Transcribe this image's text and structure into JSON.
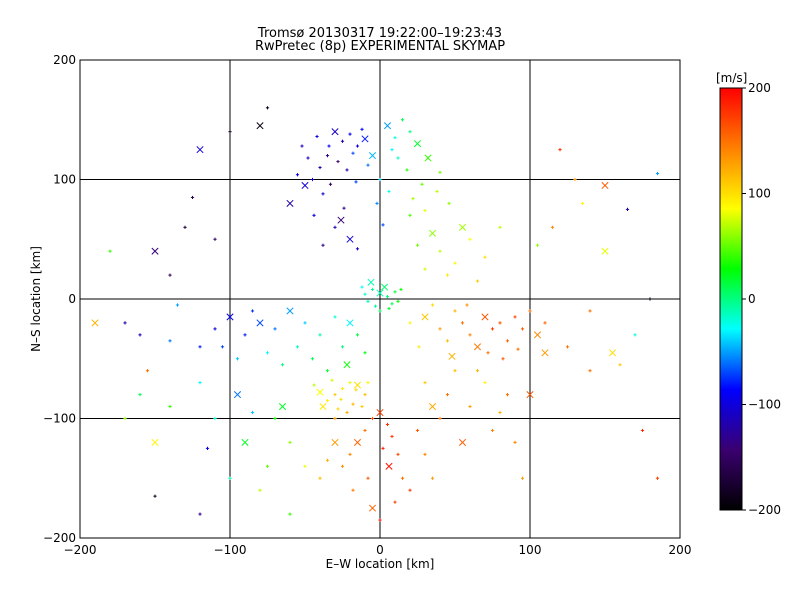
{
  "chart_data": {
    "type": "scatter",
    "title": "Tromsø 20130317 19:22:00–19:23:43",
    "subtitle": "RwPretec (8p) EXPERIMENTAL SKYMAP",
    "xlabel": "E–W location [km]",
    "ylabel": "N–S location [km]",
    "xlim": [
      -200,
      200
    ],
    "ylim": [
      -200,
      200
    ],
    "xticks": [
      -200,
      -100,
      0,
      100,
      200
    ],
    "yticks": [
      -200,
      -100,
      0,
      100,
      200
    ],
    "grid": true,
    "colorbar": {
      "label": "[m/s]",
      "range": [
        -200,
        200
      ],
      "ticks": [
        -200,
        -100,
        0,
        100,
        200
      ],
      "colors": [
        "#000000",
        "#3a0070",
        "#0000ff",
        "#00ffff",
        "#00ff00",
        "#ffff00",
        "#ff8000",
        "#ff0000"
      ]
    },
    "markers": [
      "+",
      "x"
    ],
    "series": [
      {
        "points": [
          [
            -30,
            140,
            -110
          ],
          [
            -25,
            132,
            -120
          ],
          [
            -20,
            138,
            -90
          ],
          [
            -15,
            128,
            -100
          ],
          [
            -35,
            120,
            -130
          ],
          [
            -10,
            134,
            -80
          ],
          [
            -40,
            110,
            -120
          ],
          [
            -45,
            100,
            -110
          ],
          [
            -28,
            115,
            -140
          ],
          [
            -18,
            122,
            -70
          ],
          [
            -50,
            95,
            -100
          ],
          [
            -22,
            108,
            -125
          ],
          [
            -55,
            104,
            -95
          ],
          [
            -12,
            142,
            -85
          ],
          [
            -33,
            96,
            -150
          ],
          [
            -60,
            80,
            -120
          ],
          [
            -38,
            88,
            -105
          ],
          [
            -48,
            118,
            -110
          ],
          [
            -24,
            76,
            -130
          ],
          [
            -30,
            60,
            -115
          ],
          [
            -20,
            50,
            -100
          ],
          [
            -38,
            45,
            -135
          ],
          [
            -15,
            42,
            -110
          ],
          [
            -44,
            70,
            -95
          ],
          [
            -8,
            112,
            -60
          ],
          [
            -26,
            66,
            -145
          ],
          [
            -34,
            128,
            -88
          ],
          [
            -16,
            98,
            -72
          ],
          [
            -52,
            128,
            -112
          ],
          [
            -42,
            136,
            -98
          ],
          [
            5,
            145,
            -50
          ],
          [
            10,
            135,
            -20
          ],
          [
            15,
            150,
            10
          ],
          [
            8,
            125,
            -30
          ],
          [
            20,
            140,
            0
          ],
          [
            25,
            130,
            20
          ],
          [
            12,
            118,
            -15
          ],
          [
            18,
            108,
            35
          ],
          [
            28,
            96,
            50
          ],
          [
            22,
            84,
            65
          ],
          [
            -5,
            120,
            -45
          ],
          [
            0,
            100,
            -40
          ],
          [
            6,
            90,
            -25
          ],
          [
            -2,
            80,
            -55
          ],
          [
            2,
            62,
            -70
          ],
          [
            32,
            118,
            40
          ],
          [
            40,
            106,
            55
          ],
          [
            38,
            90,
            70
          ],
          [
            30,
            74,
            80
          ],
          [
            46,
            80,
            60
          ],
          [
            0,
            5,
            -10
          ],
          [
            5,
            2,
            0
          ],
          [
            -5,
            8,
            -5
          ],
          [
            8,
            -4,
            10
          ],
          [
            -8,
            -2,
            -15
          ],
          [
            3,
            10,
            5
          ],
          [
            -3,
            -6,
            -8
          ],
          [
            10,
            6,
            15
          ],
          [
            -10,
            4,
            -20
          ],
          [
            6,
            -8,
            20
          ],
          [
            -6,
            14,
            -12
          ],
          [
            12,
            -2,
            25
          ],
          [
            0,
            -10,
            8
          ],
          [
            -12,
            10,
            -25
          ],
          [
            14,
            8,
            30
          ],
          [
            -20,
            -20,
            -30
          ],
          [
            -30,
            -15,
            -20
          ],
          [
            -40,
            -30,
            -10
          ],
          [
            -25,
            -40,
            0
          ],
          [
            -50,
            -20,
            -40
          ],
          [
            -60,
            -10,
            -50
          ],
          [
            -45,
            -50,
            10
          ],
          [
            -35,
            -60,
            20
          ],
          [
            -55,
            -40,
            -15
          ],
          [
            -70,
            -25,
            -60
          ],
          [
            -80,
            -20,
            -70
          ],
          [
            -90,
            -30,
            -80
          ],
          [
            -65,
            -55,
            0
          ],
          [
            -75,
            -45,
            -30
          ],
          [
            -85,
            -10,
            -75
          ],
          [
            -100,
            -15,
            -90
          ],
          [
            -110,
            -25,
            -100
          ],
          [
            -120,
            -40,
            -80
          ],
          [
            -95,
            -50,
            -40
          ],
          [
            -15,
            -30,
            15
          ],
          [
            -22,
            -55,
            30
          ],
          [
            -10,
            -45,
            25
          ],
          [
            -20,
            -70,
            80
          ],
          [
            -25,
            -75,
            95
          ],
          [
            -30,
            -80,
            110
          ],
          [
            -15,
            -72,
            100
          ],
          [
            -35,
            -85,
            90
          ],
          [
            -18,
            -88,
            120
          ],
          [
            -28,
            -92,
            105
          ],
          [
            -10,
            -80,
            115
          ],
          [
            -40,
            -78,
            85
          ],
          [
            -22,
            -95,
            125
          ],
          [
            -32,
            -68,
            75
          ],
          [
            -12,
            -90,
            110
          ],
          [
            -26,
            -84,
            100
          ],
          [
            -38,
            -90,
            95
          ],
          [
            -16,
            -76,
            105
          ],
          [
            -30,
            -100,
            130
          ],
          [
            -8,
            -70,
            90
          ],
          [
            -44,
            -72,
            70
          ],
          [
            0,
            -95,
            170
          ],
          [
            -5,
            -100,
            160
          ],
          [
            5,
            -105,
            180
          ],
          [
            -10,
            -110,
            150
          ],
          [
            8,
            -115,
            175
          ],
          [
            -15,
            -120,
            155
          ],
          [
            2,
            -125,
            185
          ],
          [
            -20,
            -130,
            140
          ],
          [
            12,
            -130,
            165
          ],
          [
            -25,
            -140,
            135
          ],
          [
            6,
            -140,
            190
          ],
          [
            -8,
            -150,
            160
          ],
          [
            15,
            -150,
            150
          ],
          [
            -18,
            -160,
            145
          ],
          [
            20,
            -160,
            175
          ],
          [
            -30,
            -120,
            130
          ],
          [
            25,
            -110,
            160
          ],
          [
            30,
            -130,
            140
          ],
          [
            -35,
            -135,
            120
          ],
          [
            10,
            -170,
            170
          ],
          [
            -5,
            -175,
            155
          ],
          [
            35,
            -150,
            130
          ],
          [
            -40,
            -150,
            115
          ],
          [
            0,
            -185,
            190
          ],
          [
            20,
            -20,
            90
          ],
          [
            30,
            -15,
            110
          ],
          [
            40,
            -25,
            130
          ],
          [
            50,
            -10,
            120
          ],
          [
            55,
            -20,
            150
          ],
          [
            60,
            -30,
            140
          ],
          [
            70,
            -15,
            160
          ],
          [
            75,
            -25,
            175
          ],
          [
            80,
            -20,
            165
          ],
          [
            85,
            -35,
            155
          ],
          [
            90,
            -15,
            170
          ],
          [
            65,
            -40,
            145
          ],
          [
            45,
            -35,
            115
          ],
          [
            35,
            -5,
            100
          ],
          [
            95,
            -25,
            160
          ],
          [
            100,
            -10,
            150
          ],
          [
            105,
            -30,
            140
          ],
          [
            110,
            -20,
            155
          ],
          [
            58,
            -5,
            135
          ],
          [
            72,
            -45,
            150
          ],
          [
            82,
            -50,
            160
          ],
          [
            48,
            -48,
            120
          ],
          [
            26,
            -40,
            95
          ],
          [
            92,
            -42,
            150
          ],
          [
            40,
            40,
            70
          ],
          [
            50,
            30,
            90
          ],
          [
            35,
            55,
            60
          ],
          [
            60,
            50,
            85
          ],
          [
            45,
            20,
            95
          ],
          [
            30,
            25,
            75
          ],
          [
            70,
            35,
            100
          ],
          [
            55,
            60,
            65
          ],
          [
            25,
            45,
            55
          ],
          [
            65,
            15,
            110
          ],
          [
            80,
            60,
            70
          ],
          [
            20,
            70,
            45
          ],
          [
            -150,
            40,
            -140
          ],
          [
            -140,
            20,
            -150
          ],
          [
            -170,
            -20,
            -120
          ],
          [
            -160,
            -30,
            -110
          ],
          [
            -180,
            40,
            40
          ],
          [
            -190,
            -20,
            120
          ],
          [
            -155,
            -60,
            150
          ],
          [
            -150,
            -165,
            -180
          ],
          [
            -120,
            -180,
            -130
          ],
          [
            -115,
            -125,
            -90
          ],
          [
            -120,
            125,
            -100
          ],
          [
            -125,
            85,
            -160
          ],
          [
            -130,
            60,
            -170
          ],
          [
            -140,
            -35,
            -60
          ],
          [
            -100,
            140,
            -180
          ],
          [
            -80,
            145,
            -190
          ],
          [
            -75,
            160,
            -185
          ],
          [
            -110,
            50,
            -150
          ],
          [
            -105,
            -40,
            -70
          ],
          [
            -135,
            -5,
            -50
          ],
          [
            150,
            95,
            160
          ],
          [
            165,
            75,
            -120
          ],
          [
            185,
            105,
            -50
          ],
          [
            180,
            0,
            -190
          ],
          [
            170,
            -30,
            -20
          ],
          [
            155,
            -45,
            100
          ],
          [
            140,
            -60,
            150
          ],
          [
            130,
            100,
            130
          ],
          [
            120,
            125,
            180
          ],
          [
            115,
            60,
            140
          ],
          [
            100,
            -80,
            160
          ],
          [
            95,
            -150,
            130
          ],
          [
            90,
            -120,
            140
          ],
          [
            80,
            -95,
            120
          ],
          [
            70,
            -70,
            90
          ],
          [
            110,
            -45,
            130
          ],
          [
            125,
            -40,
            150
          ],
          [
            160,
            -55,
            110
          ],
          [
            185,
            -150,
            170
          ],
          [
            175,
            -110,
            180
          ],
          [
            150,
            40,
            80
          ],
          [
            140,
            -10,
            150
          ],
          [
            135,
            80,
            90
          ],
          [
            105,
            45,
            60
          ],
          [
            -85,
            -95,
            -40
          ],
          [
            -95,
            -80,
            -60
          ],
          [
            -70,
            -100,
            30
          ],
          [
            -60,
            -120,
            60
          ],
          [
            -50,
            -140,
            80
          ],
          [
            -75,
            -140,
            50
          ],
          [
            -90,
            -120,
            20
          ],
          [
            -110,
            -100,
            -20
          ],
          [
            -80,
            -160,
            70
          ],
          [
            -60,
            -180,
            40
          ],
          [
            -100,
            -150,
            -10
          ],
          [
            -65,
            -90,
            20
          ],
          [
            -140,
            -90,
            40
          ],
          [
            -160,
            -80,
            10
          ],
          [
            -120,
            -70,
            -30
          ],
          [
            -170,
            -100,
            60
          ],
          [
            -150,
            -120,
            90
          ],
          [
            30,
            -70,
            110
          ],
          [
            45,
            -80,
            150
          ],
          [
            60,
            -90,
            130
          ],
          [
            75,
            -110,
            140
          ],
          [
            55,
            -120,
            160
          ],
          [
            40,
            -100,
            145
          ],
          [
            65,
            -60,
            120
          ],
          [
            85,
            -80,
            150
          ],
          [
            50,
            -60,
            115
          ],
          [
            35,
            -90,
            125
          ]
        ]
      }
    ]
  }
}
